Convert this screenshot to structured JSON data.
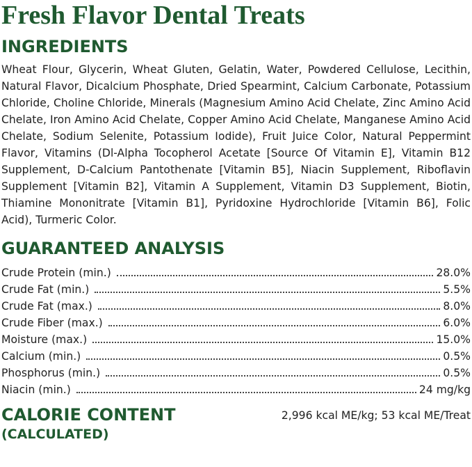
{
  "title": "Fresh Flavor Dental Treats",
  "ingredients": {
    "heading": "INGREDIENTS",
    "text": "Wheat Flour, Glycerin, Wheat Gluten, Gelatin, Water, Powdered Cellulose, Lecithin, Natural Flavor, Dicalcium Phosphate, Dried Spearmint, Calcium Carbonate, Potassium Chloride, Choline Chloride, Minerals (Magnesium Amino Acid Chelate, Zinc Amino Acid Chelate, Iron Amino Acid Chelate, Copper Amino Acid Chelate, Manganese Amino Acid Chelate, Sodium Selenite, Potassium Iodide), Fruit Juice Color, Natural Peppermint Flavor, Vitamins (Dl-Alpha Tocopherol Acetate [Source Of Vitamin E], Vitamin B12 Supplement, D-Calcium Pantothenate [Vitamin B5], Niacin Supplement, Riboflavin Supplement [Vitamin B2], Vitamin A Supplement, Vitamin D3 Supplement, Biotin, Thiamine Mononitrate [Vitamin B1], Pyridoxine Hydrochloride [Vitamin B6], Folic Acid), Turmeric Color."
  },
  "guaranteed_analysis": {
    "heading": "GUARANTEED ANALYSIS",
    "rows": [
      [
        "Crude Protein (min.)",
        "28.0%"
      ],
      [
        "Crude Fat (min.)",
        "5.5%"
      ],
      [
        "Crude Fat (max.)",
        "8.0%"
      ],
      [
        "Crude Fiber (max.)",
        "6.0%"
      ],
      [
        "Moisture (max.)",
        "15.0%"
      ],
      [
        "Calcium (min.)",
        "0.5%"
      ],
      [
        "Phosphorus (min.)",
        "0.5%"
      ],
      [
        "Niacin (min.)",
        "24 mg/kg"
      ]
    ]
  },
  "calorie_content": {
    "heading": "CALORIE CONTENT",
    "subheading": "(CALCULATED)",
    "value": "2,996 kcal ME/kg; 53 kcal ME/Treat"
  }
}
